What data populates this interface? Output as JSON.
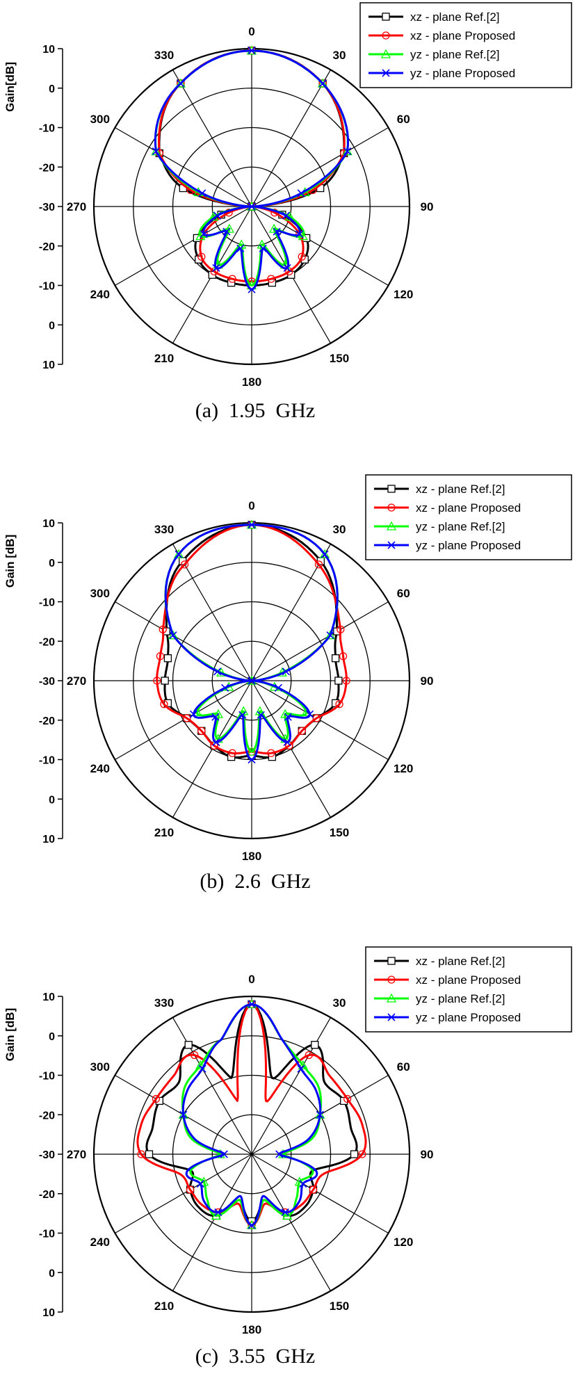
{
  "figure": {
    "axis_title": "Gain[dB]",
    "panels": [
      {
        "caption": "(a)  1.95  GHz",
        "axis_title": "Gain[dB]"
      },
      {
        "caption": "(b)  2.6  GHz",
        "axis_title": "Gain [dB]"
      },
      {
        "caption": "(c)  3.55  GHz",
        "axis_title": "Gain [dB]"
      }
    ]
  },
  "chart_data": [
    {
      "type": "polar",
      "title": "(a)  1.95  GHz",
      "ylabel": "Gain[dB]",
      "rlim": [
        -30,
        10
      ],
      "radial_ticks": [
        10,
        0,
        -10,
        -20,
        -30,
        -20,
        -10,
        0,
        10
      ],
      "angle_ticks": [
        0,
        30,
        60,
        90,
        120,
        150,
        180,
        210,
        240,
        270,
        300,
        330
      ],
      "grid": true,
      "legend_position": "top-right",
      "series": [
        {
          "name": "xz - plane Ref.[2]",
          "color": "#000000",
          "marker": "square",
          "angles": [
            0,
            30,
            60,
            75,
            90,
            105,
            120,
            135,
            150,
            165,
            180,
            195,
            210,
            225,
            240,
            255,
            270,
            285,
            300,
            330
          ],
          "values": [
            9.5,
            6,
            -3,
            -12,
            -30,
            -22,
            -14,
            -11,
            -10,
            -10,
            -10,
            -10,
            -10,
            -11,
            -14,
            -22,
            -30,
            -12,
            -3,
            6
          ]
        },
        {
          "name": "xz - plane Proposed",
          "color": "#ff0000",
          "marker": "circle",
          "angles": [
            0,
            30,
            60,
            75,
            90,
            105,
            120,
            135,
            150,
            165,
            180,
            195,
            210,
            225,
            240,
            255,
            270,
            285,
            300,
            330
          ],
          "values": [
            9.5,
            6,
            -3,
            -14,
            -30,
            -24,
            -16,
            -12,
            -11,
            -11,
            -11,
            -11,
            -11,
            -12,
            -16,
            -24,
            -30,
            -14,
            -3,
            6
          ]
        },
        {
          "name": "yz - plane Ref.[2]",
          "color": "#00ff00",
          "marker": "triangle",
          "angles": [
            0,
            30,
            60,
            75,
            90,
            105,
            120,
            135,
            150,
            165,
            180,
            195,
            210,
            225,
            240,
            255,
            270,
            285,
            300,
            330
          ],
          "values": [
            9.5,
            6,
            -2,
            -16,
            -30,
            -20,
            -15,
            -22,
            -13,
            -20,
            -10,
            -20,
            -13,
            -22,
            -15,
            -20,
            -30,
            -16,
            -2,
            6
          ]
        },
        {
          "name": "yz - plane Proposed",
          "color": "#0000ff",
          "marker": "x",
          "angles": [
            0,
            30,
            60,
            75,
            90,
            105,
            120,
            135,
            150,
            165,
            180,
            195,
            210,
            225,
            240,
            255,
            270,
            285,
            300,
            330
          ],
          "values": [
            9.5,
            6,
            -2,
            -17,
            -30,
            -21,
            -16,
            -21,
            -12,
            -19,
            -9,
            -19,
            -12,
            -21,
            -16,
            -21,
            -30,
            -17,
            -2,
            6
          ]
        }
      ]
    },
    {
      "type": "polar",
      "title": "(b)  2.6  GHz",
      "ylabel": "Gain [dB]",
      "rlim": [
        -30,
        10
      ],
      "radial_ticks": [
        10,
        0,
        -10,
        -20,
        -30,
        -20,
        -10,
        0,
        10
      ],
      "angle_ticks": [
        0,
        30,
        60,
        90,
        120,
        150,
        180,
        210,
        240,
        270,
        300,
        330
      ],
      "grid": true,
      "legend_position": "top-right",
      "series": [
        {
          "name": "xz - plane Ref.[2]",
          "color": "#000000",
          "marker": "square",
          "angles": [
            0,
            30,
            60,
            75,
            90,
            105,
            120,
            135,
            150,
            165,
            180,
            195,
            210,
            225,
            240,
            255,
            270,
            285,
            300,
            330
          ],
          "values": [
            9.5,
            5,
            -5,
            -8,
            -8,
            -8,
            -11,
            -12,
            -11,
            -10,
            -11,
            -10,
            -11,
            -12,
            -11,
            -8,
            -8,
            -8,
            -5,
            5
          ]
        },
        {
          "name": "xz - plane Proposed",
          "color": "#ff0000",
          "marker": "circle",
          "angles": [
            0,
            30,
            60,
            75,
            90,
            105,
            120,
            135,
            150,
            165,
            180,
            195,
            210,
            225,
            240,
            255,
            270,
            285,
            300,
            330
          ],
          "values": [
            9.5,
            4,
            -4,
            -6,
            -6,
            -7,
            -11,
            -12,
            -11,
            -11,
            -12,
            -11,
            -11,
            -12,
            -11,
            -7,
            -6,
            -6,
            -4,
            4
          ]
        },
        {
          "name": "yz - plane Ref.[2]",
          "color": "#00ff00",
          "marker": "triangle",
          "angles": [
            0,
            30,
            60,
            75,
            90,
            105,
            120,
            135,
            150,
            165,
            180,
            195,
            210,
            225,
            240,
            255,
            270,
            285,
            300,
            330
          ],
          "values": [
            9.5,
            7,
            -7,
            -22,
            -30,
            -24,
            -14,
            -18,
            -13,
            -22,
            -12,
            -22,
            -13,
            -18,
            -14,
            -24,
            -30,
            -22,
            -7,
            7
          ]
        },
        {
          "name": "yz - plane Proposed",
          "color": "#0000ff",
          "marker": "x",
          "angles": [
            0,
            30,
            60,
            75,
            90,
            105,
            120,
            135,
            150,
            165,
            180,
            195,
            210,
            225,
            240,
            255,
            270,
            285,
            300,
            330
          ],
          "values": [
            9.5,
            7,
            -7,
            -21,
            -30,
            -23,
            -13,
            -17,
            -12,
            -21,
            -10,
            -21,
            -12,
            -17,
            -13,
            -23,
            -30,
            -21,
            -7,
            7
          ]
        }
      ]
    },
    {
      "type": "polar",
      "title": "(c)  3.55  GHz",
      "ylabel": "Gain [dB]",
      "rlim": [
        -30,
        10
      ],
      "radial_ticks": [
        10,
        0,
        -10,
        -20,
        -30,
        -20,
        -10,
        0,
        10
      ],
      "angle_ticks": [
        0,
        30,
        60,
        90,
        120,
        150,
        180,
        210,
        240,
        270,
        300,
        330
      ],
      "grid": true,
      "legend_position": "top-right",
      "series": [
        {
          "name": "xz - plane Ref.[2]",
          "color": "#000000",
          "marker": "square",
          "angles": [
            0,
            15,
            30,
            45,
            60,
            75,
            90,
            105,
            120,
            135,
            150,
            165,
            180,
            195,
            210,
            225,
            240,
            255,
            270,
            285,
            300,
            315,
            330,
            345
          ],
          "values": [
            8,
            -10,
            2,
            -4,
            -3,
            -4,
            -4,
            -14,
            -12,
            -11,
            -12,
            -18,
            -13,
            -18,
            -12,
            -11,
            -12,
            -14,
            -4,
            -4,
            -3,
            -4,
            2,
            -10
          ]
        },
        {
          "name": "xz - plane Proposed",
          "color": "#ff0000",
          "marker": "circle",
          "angles": [
            0,
            15,
            30,
            45,
            60,
            75,
            90,
            105,
            120,
            135,
            150,
            165,
            180,
            195,
            210,
            225,
            240,
            255,
            270,
            285,
            300,
            315,
            330,
            345
          ],
          "values": [
            8,
            -16,
            -1,
            -2,
            -2,
            -1,
            -2,
            -11,
            -12,
            -12,
            -13,
            -17,
            -12,
            -17,
            -13,
            -12,
            -12,
            -11,
            -2,
            -1,
            -2,
            -2,
            -1,
            -16
          ]
        },
        {
          "name": "yz - plane Ref.[2]",
          "color": "#00ff00",
          "marker": "triangle",
          "angles": [
            0,
            15,
            30,
            45,
            60,
            75,
            90,
            105,
            120,
            135,
            150,
            165,
            180,
            195,
            210,
            225,
            240,
            255,
            270,
            285,
            300,
            315,
            330,
            345
          ],
          "values": [
            8,
            0,
            -4,
            -6,
            -10,
            -14,
            -22,
            -14,
            -16,
            -14,
            -12,
            -18,
            -12,
            -18,
            -12,
            -14,
            -16,
            -14,
            -22,
            -14,
            -10,
            -6,
            -4,
            0
          ]
        },
        {
          "name": "yz - plane Proposed",
          "color": "#0000ff",
          "marker": "x",
          "angles": [
            0,
            15,
            30,
            45,
            60,
            75,
            90,
            105,
            120,
            135,
            150,
            165,
            180,
            195,
            210,
            225,
            240,
            255,
            270,
            285,
            300,
            315,
            330,
            345
          ],
          "values": [
            8,
            0,
            -5,
            -7,
            -10,
            -15,
            -23,
            -13,
            -15,
            -13,
            -13,
            -19,
            -12,
            -19,
            -13,
            -13,
            -15,
            -13,
            -23,
            -15,
            -10,
            -7,
            -5,
            0
          ]
        }
      ]
    }
  ]
}
